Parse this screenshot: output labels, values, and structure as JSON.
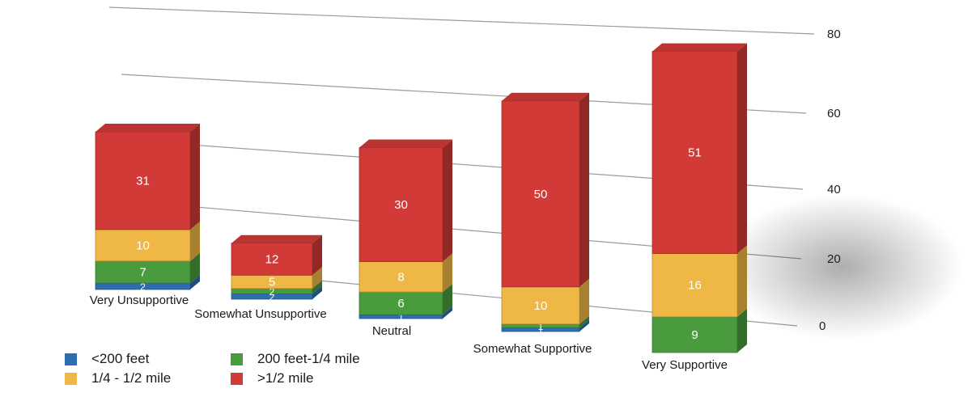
{
  "chart_data": {
    "type": "bar",
    "stacked": true,
    "style": "3d",
    "categories": [
      "Very Unsupportive",
      "Somewhat Unsupportive",
      "Neutral",
      "Somewhat Supportive",
      "Very Supportive"
    ],
    "series": [
      {
        "name": "<200 feet",
        "color": "#2f6db3",
        "values": [
          2,
          2,
          1,
          1,
          0
        ]
      },
      {
        "name": "200 feet-1/4 mile",
        "color": "#4a9a3e",
        "values": [
          7,
          2,
          6,
          1,
          9
        ]
      },
      {
        "name": "1/4 - 1/2 mile",
        "color": "#efb745",
        "values": [
          10,
          5,
          8,
          10,
          16
        ]
      },
      {
        "name": ">1/2 mile",
        "color": "#d13a36",
        "values": [
          31,
          12,
          30,
          50,
          51
        ]
      }
    ],
    "data_labels": [
      [
        "2",
        "7",
        "10",
        "31"
      ],
      [
        "2",
        "2",
        "5",
        "12"
      ],
      [
        "1",
        "6",
        "8",
        "30"
      ],
      [
        "1",
        "1",
        "10",
        "50"
      ],
      [
        "",
        "9",
        "16",
        "51"
      ]
    ],
    "y_ticks": [
      "0",
      "20",
      "40",
      "60",
      "80"
    ],
    "ylim": [
      0,
      80
    ],
    "grid": true,
    "legend_position": "bottom-left"
  }
}
